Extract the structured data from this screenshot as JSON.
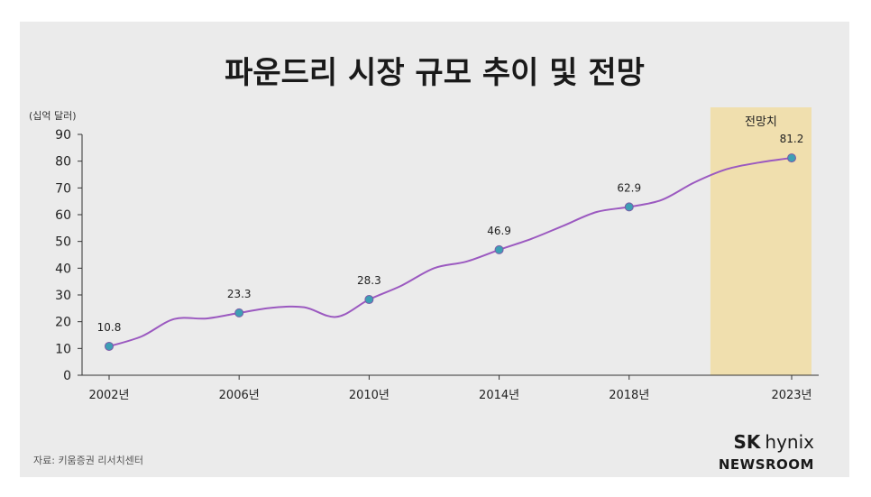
{
  "chart_data": {
    "type": "line",
    "title": "파운드리 시장 규모 추이 및 전망",
    "unit_label": "(십억 달러)",
    "forecast_label": "전망치",
    "source": "자료: 키움증권 리서치센터",
    "logo": {
      "line1_bold": "SK",
      "line1_rest": "hynix",
      "line2": "NEWSROOM"
    },
    "ylim": [
      0,
      90
    ],
    "yticks": [
      0,
      10,
      20,
      30,
      40,
      50,
      60,
      70,
      80,
      90
    ],
    "xlim": [
      2002,
      2023
    ],
    "xtick_labels": [
      "2002년",
      "2006년",
      "2010년",
      "2014년",
      "2018년",
      "2023년"
    ],
    "forecast_start": 2020.5,
    "series": [
      {
        "color": "#9b59c0",
        "marker_color": "#3d9fb4",
        "points": [
          {
            "x": 2002,
            "y": 10.8,
            "label": "10.8"
          },
          {
            "x": 2006,
            "y": 23.3,
            "label": "23.3"
          },
          {
            "x": 2010,
            "y": 28.3,
            "label": "28.3"
          },
          {
            "x": 2014,
            "y": 46.9,
            "label": "46.9"
          },
          {
            "x": 2018,
            "y": 62.9,
            "label": "62.9"
          },
          {
            "x": 2023,
            "y": 81.2,
            "label": "81.2"
          }
        ],
        "curve": [
          [
            2002,
            10.8
          ],
          [
            2003,
            14.5
          ],
          [
            2004,
            21.0
          ],
          [
            2005,
            21.2
          ],
          [
            2006,
            23.3
          ],
          [
            2007,
            25.2
          ],
          [
            2008,
            25.4
          ],
          [
            2009,
            21.8
          ],
          [
            2010,
            28.3
          ],
          [
            2011,
            33.5
          ],
          [
            2012,
            40.0
          ],
          [
            2013,
            42.5
          ],
          [
            2014,
            46.9
          ],
          [
            2015,
            51.0
          ],
          [
            2016,
            56.0
          ],
          [
            2017,
            61.0
          ],
          [
            2018,
            62.9
          ],
          [
            2019,
            65.5
          ],
          [
            2020,
            72.0
          ],
          [
            2021,
            77.0
          ],
          [
            2022,
            79.5
          ],
          [
            2023,
            81.2
          ]
        ]
      }
    ]
  }
}
